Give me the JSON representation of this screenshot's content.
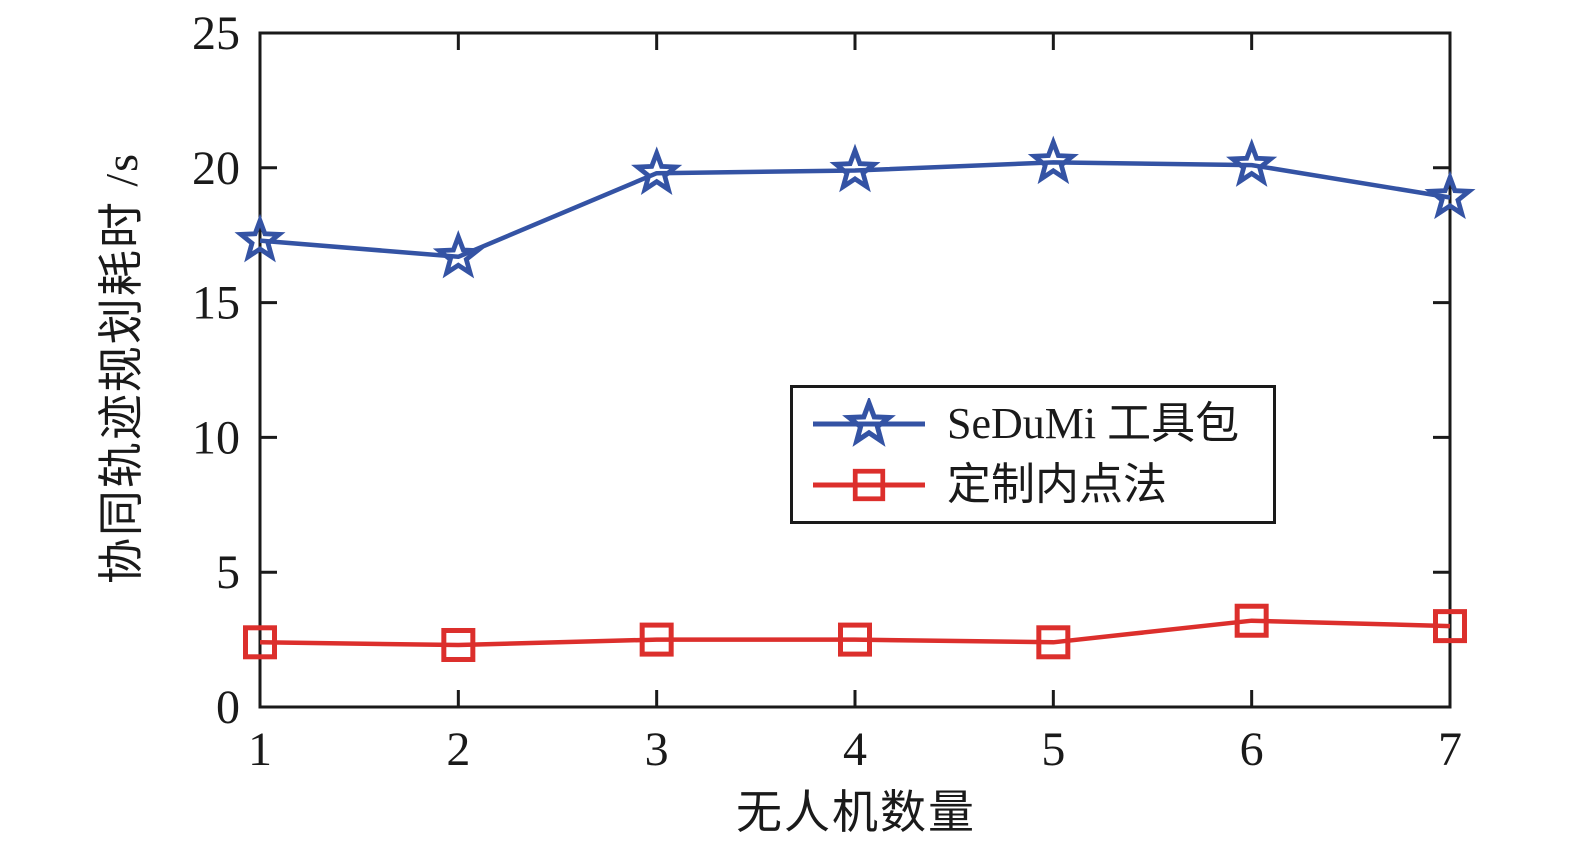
{
  "chart_data": {
    "type": "line",
    "title": "",
    "xlabel": "无人机数量",
    "ylabel": "协同轨迹规划耗时 /s",
    "x": [
      1,
      2,
      3,
      4,
      5,
      6,
      7
    ],
    "series": [
      {
        "name": "SeDuMi 工具包",
        "marker": "pentagram",
        "color": "#3453a4",
        "values": [
          17.3,
          16.7,
          19.8,
          19.9,
          20.2,
          20.1,
          18.9
        ]
      },
      {
        "name": "定制内点法",
        "marker": "square",
        "color": "#dc2f2c",
        "values": [
          2.4,
          2.3,
          2.5,
          2.5,
          2.4,
          3.2,
          3.0
        ]
      }
    ],
    "xlim": [
      1,
      7
    ],
    "ylim": [
      0,
      25
    ],
    "xticks": [
      1,
      2,
      3,
      4,
      5,
      6,
      7
    ],
    "yticks": [
      0,
      5,
      10,
      15,
      20,
      25
    ],
    "grid": false,
    "legend_position": "inside-center-right",
    "axis_color": "#1a1a1a",
    "background": "#ffffff"
  }
}
